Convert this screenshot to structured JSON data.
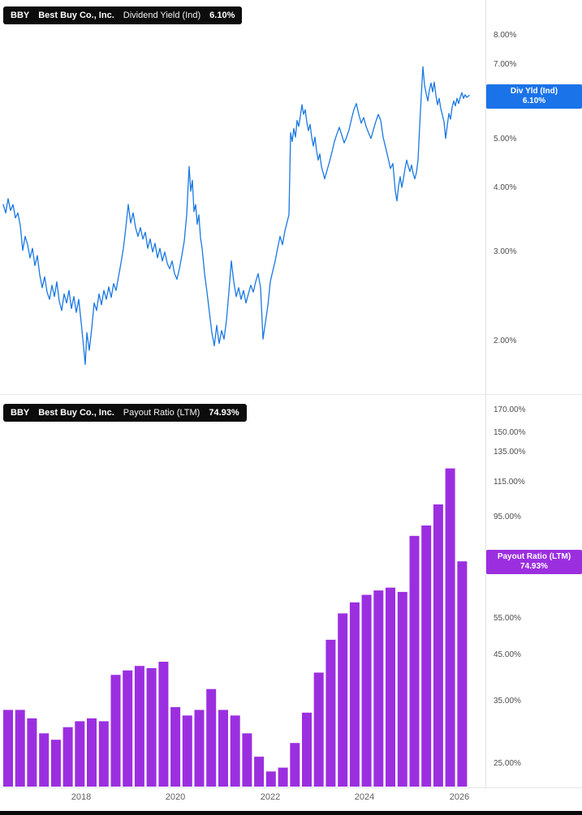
{
  "panels": [
    {
      "ticker": "BBY",
      "company": "Best Buy Co., Inc.",
      "metric": "Dividend Yield (Ind)",
      "value": "6.10%",
      "accent": "#1a73e8",
      "badge": {
        "line1": "Div Yld (Ind)",
        "line2": "6.10%"
      },
      "axis_ticks": [
        "8.00%",
        "7.00%",
        "6.00%",
        "5.00%",
        "4.00%",
        "3.00%",
        "2.00%"
      ]
    },
    {
      "ticker": "BBY",
      "company": "Best Buy Co., Inc.",
      "metric": "Payout Ratio (LTM)",
      "value": "74.93%",
      "accent": "#9b2be0",
      "badge": {
        "line1": "Payout Ratio (LTM)",
        "line2": "74.93%"
      },
      "axis_ticks": [
        "170.00%",
        "150.00%",
        "135.00%",
        "115.00%",
        "95.00%",
        "75.00%",
        "55.00%",
        "45.00%",
        "35.00%",
        "25.00%"
      ]
    }
  ],
  "x_axis": {
    "labels": [
      "2018",
      "2020",
      "2022",
      "2024",
      "2026"
    ]
  },
  "chart_data": [
    {
      "type": "line",
      "title": "BBY Best Buy Co., Inc. Dividend Yield (Ind)",
      "unit": "%",
      "color": "#1a78e2",
      "y_scale": "log",
      "y_ticks": [
        8,
        7,
        6,
        5,
        4,
        3,
        2
      ],
      "ylim": [
        1.7,
        8.5
      ],
      "x_range_years": [
        2016.5,
        2026.1
      ],
      "last_value": 6.1,
      "points": [
        [
          4,
          3.72
        ],
        [
          7,
          3.58
        ],
        [
          10,
          3.82
        ],
        [
          13,
          3.62
        ],
        [
          16,
          3.72
        ],
        [
          19,
          3.5
        ],
        [
          22,
          3.58
        ],
        [
          25,
          3.38
        ],
        [
          28,
          3.02
        ],
        [
          31,
          3.22
        ],
        [
          34,
          3.1
        ],
        [
          37,
          2.92
        ],
        [
          40,
          3.05
        ],
        [
          43,
          2.82
        ],
        [
          46,
          2.95
        ],
        [
          49,
          2.7
        ],
        [
          52,
          2.55
        ],
        [
          55,
          2.68
        ],
        [
          58,
          2.5
        ],
        [
          61,
          2.42
        ],
        [
          64,
          2.58
        ],
        [
          67,
          2.45
        ],
        [
          70,
          2.62
        ],
        [
          73,
          2.4
        ],
        [
          76,
          2.3
        ],
        [
          79,
          2.48
        ],
        [
          82,
          2.38
        ],
        [
          85,
          2.52
        ],
        [
          88,
          2.32
        ],
        [
          91,
          2.45
        ],
        [
          94,
          2.28
        ],
        [
          97,
          2.42
        ],
        [
          100,
          2.18
        ],
        [
          103,
          1.95
        ],
        [
          105,
          1.8
        ],
        [
          107,
          2.08
        ],
        [
          110,
          1.92
        ],
        [
          113,
          2.12
        ],
        [
          116,
          2.38
        ],
        [
          119,
          2.3
        ],
        [
          122,
          2.48
        ],
        [
          125,
          2.36
        ],
        [
          128,
          2.52
        ],
        [
          131,
          2.42
        ],
        [
          134,
          2.56
        ],
        [
          137,
          2.44
        ],
        [
          140,
          2.6
        ],
        [
          143,
          2.52
        ],
        [
          146,
          2.68
        ],
        [
          149,
          2.85
        ],
        [
          152,
          3.05
        ],
        [
          155,
          3.35
        ],
        [
          158,
          3.72
        ],
        [
          161,
          3.42
        ],
        [
          164,
          3.58
        ],
        [
          167,
          3.35
        ],
        [
          170,
          3.22
        ],
        [
          173,
          3.35
        ],
        [
          176,
          3.18
        ],
        [
          179,
          3.28
        ],
        [
          182,
          3.05
        ],
        [
          185,
          3.18
        ],
        [
          188,
          3.0
        ],
        [
          191,
          3.12
        ],
        [
          194,
          2.92
        ],
        [
          197,
          3.05
        ],
        [
          200,
          2.88
        ],
        [
          203,
          3.0
        ],
        [
          206,
          2.85
        ],
        [
          209,
          2.78
        ],
        [
          212,
          2.88
        ],
        [
          215,
          2.72
        ],
        [
          218,
          2.65
        ],
        [
          221,
          2.78
        ],
        [
          224,
          2.95
        ],
        [
          227,
          3.15
        ],
        [
          230,
          3.55
        ],
        [
          233,
          4.42
        ],
        [
          235,
          3.95
        ],
        [
          237,
          4.15
        ],
        [
          239,
          3.6
        ],
        [
          241,
          3.72
        ],
        [
          243,
          3.4
        ],
        [
          245,
          3.55
        ],
        [
          247,
          3.2
        ],
        [
          249,
          3.05
        ],
        [
          252,
          2.72
        ],
        [
          255,
          2.5
        ],
        [
          258,
          2.28
        ],
        [
          261,
          2.08
        ],
        [
          264,
          1.96
        ],
        [
          267,
          2.15
        ],
        [
          270,
          1.98
        ],
        [
          273,
          2.1
        ],
        [
          276,
          2.02
        ],
        [
          279,
          2.2
        ],
        [
          282,
          2.5
        ],
        [
          285,
          2.88
        ],
        [
          288,
          2.62
        ],
        [
          291,
          2.45
        ],
        [
          294,
          2.55
        ],
        [
          297,
          2.42
        ],
        [
          300,
          2.52
        ],
        [
          303,
          2.38
        ],
        [
          306,
          2.48
        ],
        [
          309,
          2.58
        ],
        [
          312,
          2.5
        ],
        [
          315,
          2.62
        ],
        [
          318,
          2.72
        ],
        [
          321,
          2.55
        ],
        [
          324,
          2.02
        ],
        [
          327,
          2.18
        ],
        [
          330,
          2.35
        ],
        [
          333,
          2.62
        ],
        [
          336,
          2.75
        ],
        [
          339,
          2.88
        ],
        [
          342,
          3.05
        ],
        [
          345,
          3.22
        ],
        [
          348,
          3.1
        ],
        [
          351,
          3.3
        ],
        [
          354,
          3.45
        ],
        [
          356,
          3.55
        ],
        [
          358,
          5.15
        ],
        [
          360,
          4.95
        ],
        [
          362,
          5.25
        ],
        [
          364,
          5.05
        ],
        [
          366,
          5.45
        ],
        [
          368,
          5.3
        ],
        [
          370,
          5.55
        ],
        [
          372,
          5.85
        ],
        [
          374,
          5.6
        ],
        [
          376,
          5.72
        ],
        [
          378,
          5.4
        ],
        [
          380,
          5.2
        ],
        [
          382,
          5.35
        ],
        [
          384,
          5.05
        ],
        [
          386,
          4.85
        ],
        [
          388,
          5.05
        ],
        [
          390,
          4.75
        ],
        [
          392,
          4.55
        ],
        [
          394,
          4.68
        ],
        [
          396,
          4.42
        ],
        [
          398,
          4.3
        ],
        [
          400,
          4.18
        ],
        [
          403,
          4.35
        ],
        [
          406,
          4.52
        ],
        [
          409,
          4.72
        ],
        [
          412,
          4.95
        ],
        [
          415,
          5.12
        ],
        [
          418,
          5.28
        ],
        [
          421,
          5.1
        ],
        [
          424,
          4.92
        ],
        [
          427,
          5.05
        ],
        [
          430,
          5.22
        ],
        [
          433,
          5.48
        ],
        [
          436,
          5.72
        ],
        [
          439,
          5.88
        ],
        [
          442,
          5.6
        ],
        [
          445,
          5.38
        ],
        [
          448,
          5.52
        ],
        [
          451,
          5.3
        ],
        [
          454,
          5.15
        ],
        [
          457,
          5.02
        ],
        [
          460,
          5.22
        ],
        [
          463,
          5.42
        ],
        [
          466,
          5.6
        ],
        [
          469,
          5.45
        ],
        [
          472,
          5.05
        ],
        [
          475,
          4.82
        ],
        [
          478,
          4.6
        ],
        [
          481,
          4.38
        ],
        [
          484,
          4.48
        ],
        [
          487,
          3.95
        ],
        [
          489,
          3.78
        ],
        [
          491,
          4.05
        ],
        [
          493,
          4.22
        ],
        [
          495,
          4.02
        ],
        [
          497,
          4.18
        ],
        [
          499,
          4.38
        ],
        [
          501,
          4.55
        ],
        [
          503,
          4.42
        ],
        [
          505,
          4.32
        ],
        [
          507,
          4.45
        ],
        [
          509,
          4.28
        ],
        [
          511,
          4.18
        ],
        [
          513,
          4.3
        ],
        [
          515,
          4.55
        ],
        [
          517,
          5.3
        ],
        [
          519,
          6.1
        ],
        [
          521,
          6.95
        ],
        [
          523,
          6.4
        ],
        [
          525,
          6.15
        ],
        [
          527,
          5.95
        ],
        [
          529,
          6.25
        ],
        [
          531,
          6.45
        ],
        [
          533,
          6.2
        ],
        [
          535,
          6.48
        ],
        [
          537,
          6.1
        ],
        [
          539,
          5.85
        ],
        [
          541,
          6.02
        ],
        [
          543,
          5.75
        ],
        [
          545,
          5.58
        ],
        [
          547,
          5.42
        ],
        [
          549,
          5.02
        ],
        [
          551,
          5.32
        ],
        [
          553,
          5.62
        ],
        [
          555,
          5.48
        ],
        [
          557,
          5.78
        ],
        [
          559,
          5.95
        ],
        [
          561,
          5.82
        ],
        [
          563,
          6.02
        ],
        [
          565,
          5.88
        ],
        [
          567,
          6.05
        ],
        [
          569,
          6.18
        ],
        [
          571,
          6.02
        ],
        [
          573,
          6.12
        ],
        [
          575,
          6.05
        ],
        [
          578,
          6.1
        ]
      ]
    },
    {
      "type": "bar",
      "title": "BBY Best Buy Co., Inc. Payout Ratio (LTM)",
      "unit": "%",
      "color": "#9b2fe0",
      "y_scale": "log",
      "y_ticks": [
        170,
        150,
        135,
        115,
        95,
        75,
        55,
        45,
        35,
        25
      ],
      "ylim": [
        22,
        180
      ],
      "frequency": "quarterly",
      "start_period": "2016-Q3",
      "last_value": 74.93,
      "values": [
        33.5,
        33.5,
        32,
        29.5,
        28.5,
        30.5,
        31.5,
        32,
        31.5,
        40.5,
        41.5,
        42.5,
        42,
        43.5,
        34,
        32.5,
        33.5,
        37.5,
        33.5,
        32.5,
        29.5,
        26,
        24,
        24.5,
        28,
        33,
        41,
        49,
        56.5,
        60,
        62.5,
        64,
        65,
        63.5,
        86,
        91,
        102,
        124,
        74.93
      ]
    }
  ]
}
